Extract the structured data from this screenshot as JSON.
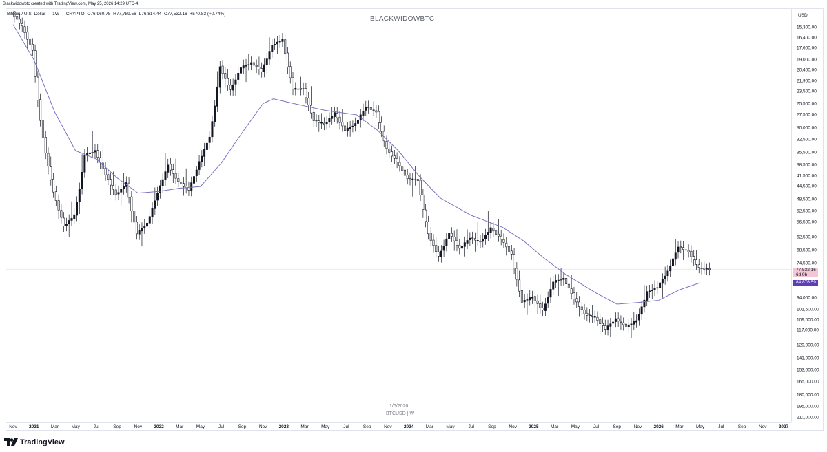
{
  "header": {
    "created_by": "Blackwidowbtc created with TradingView.com, May 25, 2026 14:29 UTC-4"
  },
  "legend": {
    "symbol": "Bitcoin / U.S. Dollar",
    "interval": "1W",
    "exchange": "CRYPTO",
    "open": "O76,960.78",
    "high": "H77,789.56",
    "low": "L76,814.44",
    "close": "C77,532.16",
    "change": "+570.83 (+0.74%)"
  },
  "watermark": "BLACKWIDOWBTC",
  "currency": "USD",
  "footer": {
    "date": "1/6/2026",
    "symbol_line": "BTCUSD | W"
  },
  "logo_text": "TradingView",
  "colors": {
    "candle_up": "#ffffff",
    "candle_down": "#131722",
    "moving_average": "#7b6fc2",
    "current_price_bg": "#f3c6d6",
    "ma_price_bg": "#5b3fb6"
  },
  "chart_data": {
    "type": "candlestick",
    "scale": "inverted-log",
    "price_axis_labels": [
      "15,300.00",
      "16,400.00",
      "17,600.00",
      "19,000.00",
      "20,400.00",
      "21,900.00",
      "23,500.00",
      "25,500.00",
      "27,500.00",
      "30,000.00",
      "32,500.00",
      "35,500.00",
      "38,500.00",
      "41,500.00",
      "44,500.00",
      "48,500.00",
      "52,500.00",
      "56,500.00",
      "62,500.00",
      "68,500.00",
      "74,500.00",
      "94,000.00",
      "101,500.00",
      "109,000.00",
      "117,000.00",
      "129,000.00",
      "141,000.00",
      "153,000.00",
      "165,000.00",
      "180,000.00",
      "195,000.00",
      "210,000.00"
    ],
    "time_axis_labels": [
      {
        "text": "Nov",
        "bold": false
      },
      {
        "text": "2021",
        "bold": true
      },
      {
        "text": "Mar",
        "bold": false
      },
      {
        "text": "May",
        "bold": false
      },
      {
        "text": "Jul",
        "bold": false
      },
      {
        "text": "Sep",
        "bold": false
      },
      {
        "text": "Nov",
        "bold": false
      },
      {
        "text": "2022",
        "bold": true
      },
      {
        "text": "Mar",
        "bold": false
      },
      {
        "text": "May",
        "bold": false
      },
      {
        "text": "Jul",
        "bold": false
      },
      {
        "text": "Sep",
        "bold": false
      },
      {
        "text": "Nov",
        "bold": false
      },
      {
        "text": "2023",
        "bold": true
      },
      {
        "text": "Mar",
        "bold": false
      },
      {
        "text": "May",
        "bold": false
      },
      {
        "text": "Jul",
        "bold": false
      },
      {
        "text": "Sep",
        "bold": false
      },
      {
        "text": "Nov",
        "bold": false
      },
      {
        "text": "2024",
        "bold": true
      },
      {
        "text": "Mar",
        "bold": false
      },
      {
        "text": "May",
        "bold": false
      },
      {
        "text": "Jul",
        "bold": false
      },
      {
        "text": "Sep",
        "bold": false
      },
      {
        "text": "Nov",
        "bold": false
      },
      {
        "text": "2025",
        "bold": true
      },
      {
        "text": "Mar",
        "bold": false
      },
      {
        "text": "May",
        "bold": false
      },
      {
        "text": "Jul",
        "bold": false
      },
      {
        "text": "Sep",
        "bold": false
      },
      {
        "text": "Nov",
        "bold": false
      },
      {
        "text": "2026",
        "bold": true
      },
      {
        "text": "Mar",
        "bold": false
      },
      {
        "text": "May",
        "bold": false
      },
      {
        "text": "Jul",
        "bold": false
      },
      {
        "text": "Sep",
        "bold": false
      },
      {
        "text": "Nov",
        "bold": false
      },
      {
        "text": "2027",
        "bold": true
      }
    ],
    "current_price": {
      "line1": "77,532.16",
      "line2": "6d 9h"
    },
    "moving_average_price": "84,876.59",
    "moving_average_path": [
      [
        "2020-11",
        15000
      ],
      [
        "2021-01",
        19000
      ],
      [
        "2021-03",
        27000
      ],
      [
        "2021-05",
        35000
      ],
      [
        "2021-07",
        37000
      ],
      [
        "2021-09",
        42000
      ],
      [
        "2021-11",
        46500
      ],
      [
        "2022-01",
        46000
      ],
      [
        "2022-03",
        45000
      ],
      [
        "2022-05",
        44500
      ],
      [
        "2022-07",
        38000
      ],
      [
        "2022-09",
        31000
      ],
      [
        "2022-11",
        25500
      ],
      [
        "2022-12",
        24700
      ],
      [
        "2023-02",
        25500
      ],
      [
        "2023-05",
        26700
      ],
      [
        "2023-08",
        27500
      ],
      [
        "2023-10",
        30500
      ],
      [
        "2023-12",
        35000
      ],
      [
        "2024-02",
        41500
      ],
      [
        "2024-04",
        48000
      ],
      [
        "2024-07",
        54000
      ],
      [
        "2024-10",
        58500
      ],
      [
        "2024-12",
        64000
      ],
      [
        "2025-02",
        72000
      ],
      [
        "2025-04",
        80000
      ],
      [
        "2025-07",
        91000
      ],
      [
        "2025-09",
        98000
      ],
      [
        "2025-11",
        97000
      ],
      [
        "2026-01",
        95500
      ],
      [
        "2026-03",
        89000
      ],
      [
        "2026-05",
        84876.59
      ]
    ],
    "candles": [
      [
        "2020-11",
        13800,
        15500,
        13500,
        15200
      ],
      [
        "2020-12",
        15200,
        19000,
        14800,
        17800
      ],
      [
        "2021-01",
        17800,
        33000,
        17500,
        32000
      ],
      [
        "2021-02",
        32000,
        48000,
        30000,
        46000
      ],
      [
        "2021-03",
        46000,
        61000,
        45000,
        58000
      ],
      [
        "2021-04",
        58000,
        64000,
        47000,
        54000
      ],
      [
        "2021-05",
        54000,
        59000,
        31000,
        36000
      ],
      [
        "2021-06",
        36000,
        41000,
        29000,
        35000
      ],
      [
        "2021-07",
        35000,
        42000,
        29500,
        41000
      ],
      [
        "2021-08",
        41000,
        50000,
        37000,
        47000
      ],
      [
        "2021-09",
        47000,
        52000,
        39600,
        43500
      ],
      [
        "2021-10",
        43500,
        66000,
        43000,
        61000
      ],
      [
        "2021-11",
        61000,
        69000,
        55000,
        57000
      ],
      [
        "2021-12",
        57000,
        59000,
        42000,
        46300
      ],
      [
        "2022-01",
        46300,
        48000,
        33000,
        38500
      ],
      [
        "2022-02",
        38500,
        45800,
        34300,
        43200
      ],
      [
        "2022-03",
        43200,
        48000,
        37200,
        45500
      ],
      [
        "2022-04",
        45500,
        47400,
        38000,
        37700
      ],
      [
        "2022-05",
        37700,
        40000,
        26700,
        31800
      ],
      [
        "2022-06",
        31800,
        32000,
        17600,
        19900
      ],
      [
        "2022-07",
        19900,
        24600,
        18800,
        23300
      ],
      [
        "2022-08",
        23300,
        25200,
        19600,
        20000
      ],
      [
        "2022-09",
        20000,
        22700,
        18200,
        19400
      ],
      [
        "2022-10",
        19400,
        21000,
        18200,
        20500
      ],
      [
        "2022-11",
        20500,
        21500,
        15500,
        17200
      ],
      [
        "2022-12",
        17200,
        18400,
        16300,
        16600
      ],
      [
        "2023-01",
        16600,
        23900,
        16500,
        23100
      ],
      [
        "2023-02",
        23100,
        25200,
        21400,
        23100
      ],
      [
        "2023-03",
        23100,
        29100,
        19600,
        28500
      ],
      [
        "2023-04",
        28500,
        31000,
        27000,
        29300
      ],
      [
        "2023-05",
        29300,
        29800,
        25800,
        27200
      ],
      [
        "2023-06",
        27200,
        31400,
        24800,
        30500
      ],
      [
        "2023-07",
        30500,
        31800,
        28900,
        29200
      ],
      [
        "2023-08",
        29200,
        30200,
        25200,
        26000
      ],
      [
        "2023-09",
        26000,
        27500,
        24900,
        27000
      ],
      [
        "2023-10",
        27000,
        35000,
        26600,
        34600
      ],
      [
        "2023-11",
        34600,
        38400,
        34100,
        37700
      ],
      [
        "2023-12",
        37700,
        44700,
        37600,
        42300
      ],
      [
        "2024-01",
        42300,
        48900,
        38500,
        42600
      ],
      [
        "2024-02",
        42600,
        63900,
        41900,
        61100
      ],
      [
        "2024-03",
        61100,
        73800,
        59000,
        71300
      ],
      [
        "2024-04",
        71300,
        72700,
        59600,
        60700
      ],
      [
        "2024-05",
        60700,
        71900,
        56500,
        67500
      ],
      [
        "2024-06",
        67500,
        71900,
        58400,
        62700
      ],
      [
        "2024-07",
        62700,
        70000,
        53500,
        64600
      ],
      [
        "2024-08",
        64600,
        65600,
        49000,
        58900
      ],
      [
        "2024-09",
        58900,
        66500,
        52500,
        63300
      ],
      [
        "2024-10",
        63300,
        73600,
        58900,
        70200
      ],
      [
        "2024-11",
        70200,
        99600,
        66800,
        96400
      ],
      [
        "2024-12",
        96400,
        108300,
        90500,
        93400
      ],
      [
        "2025-01",
        93400,
        109600,
        89100,
        102400
      ],
      [
        "2025-02",
        102400,
        102500,
        78200,
        84300
      ],
      [
        "2025-03",
        84300,
        95000,
        76600,
        82500
      ],
      [
        "2025-04",
        82500,
        95800,
        74500,
        94200
      ],
      [
        "2025-05",
        94200,
        111900,
        93400,
        104600
      ],
      [
        "2025-06",
        104600,
        110500,
        98200,
        107100
      ],
      [
        "2025-07",
        107100,
        123200,
        105300,
        115700
      ],
      [
        "2025-08",
        115700,
        124400,
        108000,
        108200
      ],
      [
        "2025-09",
        108200,
        117900,
        107300,
        114000
      ],
      [
        "2025-10",
        114000,
        126200,
        104000,
        109500
      ],
      [
        "2025-11",
        109500,
        111000,
        80500,
        90400
      ],
      [
        "2025-12",
        90400,
        94600,
        84400,
        87500
      ],
      [
        "2026-01",
        87500,
        97900,
        74500,
        78600
      ],
      [
        "2026-02",
        78600,
        80000,
        60000,
        66500
      ],
      [
        "2026-03",
        66500,
        74000,
        62500,
        69000
      ],
      [
        "2026-04",
        69000,
        78000,
        65000,
        76900
      ],
      [
        "2026-05",
        76960.78,
        77789.56,
        76814.44,
        77532.16
      ]
    ]
  }
}
